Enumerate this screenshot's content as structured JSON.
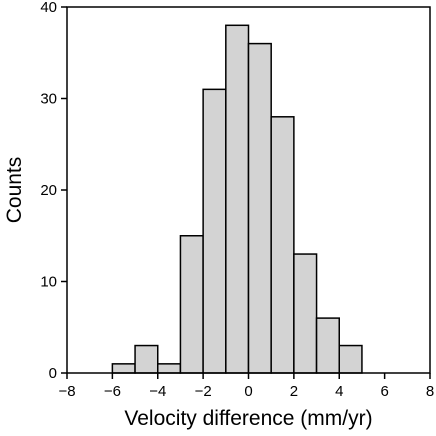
{
  "chart_data": {
    "type": "bar",
    "title": "",
    "xlabel": "Velocity difference (mm/yr)",
    "ylabel": "Counts",
    "xlim": [
      -8,
      8
    ],
    "ylim": [
      0,
      40
    ],
    "x_ticks": [
      -8,
      -6,
      -4,
      -2,
      0,
      2,
      4,
      6,
      8
    ],
    "x_tick_labels": [
      "−8",
      "−6",
      "−4",
      "−2",
      "0",
      "2",
      "4",
      "6",
      "8"
    ],
    "y_ticks": [
      0,
      10,
      20,
      30,
      40
    ],
    "y_tick_labels": [
      "0",
      "10",
      "20",
      "30",
      "40"
    ],
    "bin_edges": [
      -6,
      -5,
      -4,
      -3,
      -2,
      -1,
      0,
      1,
      2,
      3,
      4,
      5
    ],
    "values": [
      1,
      3,
      1,
      15,
      31,
      38,
      36,
      28,
      13,
      6,
      3
    ],
    "grid": false,
    "colors": {
      "bar_fill": "#d3d3d3",
      "bar_edge": "#000000"
    }
  }
}
